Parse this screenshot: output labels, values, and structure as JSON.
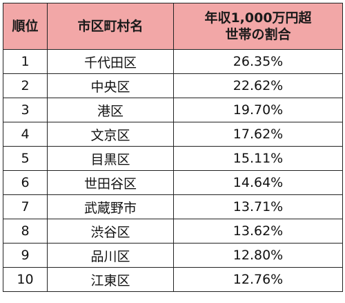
{
  "table": {
    "headers": {
      "rank": "順位",
      "name": "市区町村名",
      "pct_line1": "年収1,000万円超",
      "pct_line2": "世帯の割合"
    },
    "rows": [
      {
        "rank": "1",
        "name": "千代田区",
        "pct": "26.35%"
      },
      {
        "rank": "2",
        "name": "中央区",
        "pct": "22.62%"
      },
      {
        "rank": "3",
        "name": "港区",
        "pct": "19.70%"
      },
      {
        "rank": "4",
        "name": "文京区",
        "pct": "17.62%"
      },
      {
        "rank": "5",
        "name": "目黒区",
        "pct": "15.11%"
      },
      {
        "rank": "6",
        "name": "世田谷区",
        "pct": "14.64%"
      },
      {
        "rank": "7",
        "name": "武蔵野市",
        "pct": "13.71%"
      },
      {
        "rank": "8",
        "name": "渋谷区",
        "pct": "13.62%"
      },
      {
        "rank": "9",
        "name": "品川区",
        "pct": "12.80%"
      },
      {
        "rank": "10",
        "name": "江東区",
        "pct": "12.76%"
      }
    ]
  }
}
